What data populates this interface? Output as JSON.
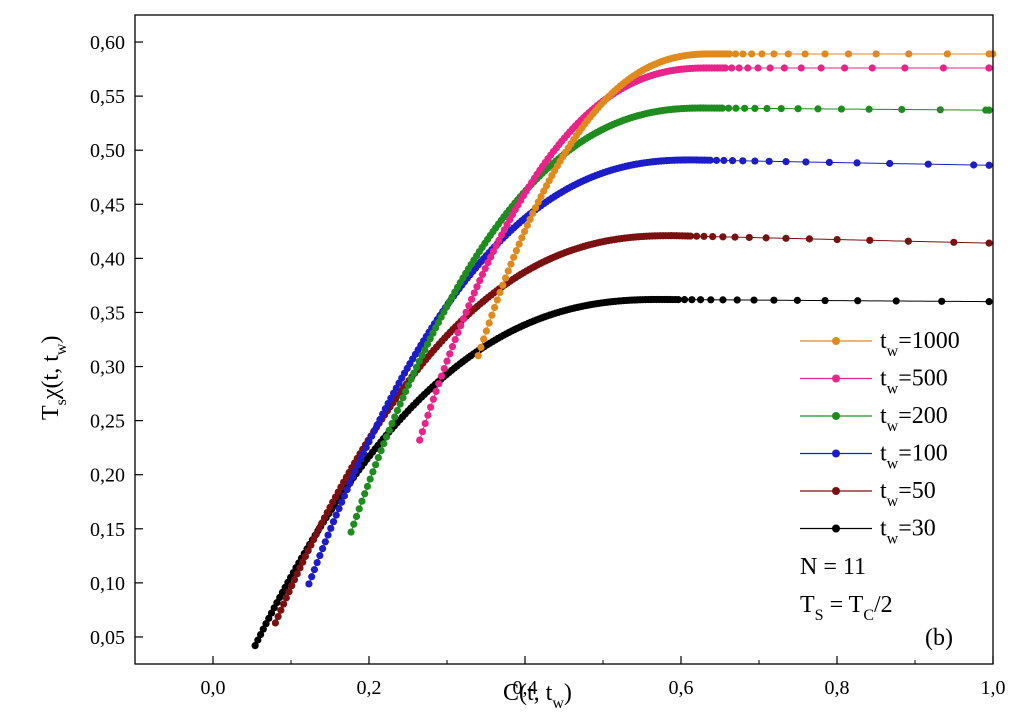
{
  "chart_data": {
    "type": "scatter",
    "title": "",
    "xlabel": "C(t, t",
    "xlabel_sub": "w",
    "xlabel_close": ")",
    "ylabel_parts": [
      "T",
      "s",
      "χ(t, t",
      "w",
      ")"
    ],
    "xlim": [
      -0.1,
      1.0
    ],
    "ylim": [
      0.025,
      0.625
    ],
    "xticks": [
      0.0,
      0.2,
      0.4,
      0.6,
      0.8,
      1.0
    ],
    "xtick_labels": [
      "0,0",
      "0,2",
      "0,4",
      "0,6",
      "0,8",
      "1,0"
    ],
    "yticks": [
      0.05,
      0.1,
      0.15,
      0.2,
      0.25,
      0.3,
      0.35,
      0.4,
      0.45,
      0.5,
      0.55,
      0.6
    ],
    "ytick_labels": [
      "0,05",
      "0,10",
      "0,15",
      "0,20",
      "0,25",
      "0,30",
      "0,35",
      "0,40",
      "0,45",
      "0,50",
      "0,55",
      "0,60"
    ],
    "grid": false,
    "legend_position": "right",
    "series": [
      {
        "name": "t_w=1000",
        "legend_prefix": "t",
        "legend_sub": "w",
        "legend_value": "=1000",
        "color": "#e08a1e",
        "start": [
          0.34,
          0.31
        ],
        "peak_x": 0.64,
        "peak_y": 0.589,
        "end_y": 0.589
      },
      {
        "name": "t_w=500",
        "legend_prefix": "t",
        "legend_sub": "w",
        "legend_value": "=500",
        "color": "#e8238a",
        "start": [
          0.265,
          0.232
        ],
        "peak_x": 0.635,
        "peak_y": 0.576,
        "end_y": 0.576
      },
      {
        "name": "t_w=200",
        "legend_prefix": "t",
        "legend_sub": "w",
        "legend_value": "=200",
        "color": "#1e8c1e",
        "start": [
          0.177,
          0.147
        ],
        "peak_x": 0.63,
        "peak_y": 0.539,
        "end_y": 0.537
      },
      {
        "name": "t_w=100",
        "legend_prefix": "t",
        "legend_sub": "w",
        "legend_value": "=100",
        "color": "#1c1cc8",
        "start": [
          0.123,
          0.099
        ],
        "peak_x": 0.615,
        "peak_y": 0.491,
        "end_y": 0.486
      },
      {
        "name": "t_w=50",
        "legend_prefix": "t",
        "legend_sub": "w",
        "legend_value": "=50",
        "color": "#7a1010",
        "start": [
          0.08,
          0.063
        ],
        "peak_x": 0.59,
        "peak_y": 0.421,
        "end_y": 0.414
      },
      {
        "name": "t_w=30",
        "legend_prefix": "t",
        "legend_sub": "w",
        "legend_value": "=30",
        "color": "#000000",
        "start": [
          0.054,
          0.042
        ],
        "peak_x": 0.575,
        "peak_y": 0.362,
        "end_y": 0.36
      }
    ],
    "annotations": {
      "n_label": "N = 11",
      "ts_main": "T",
      "ts_sub": "S",
      "ts_eq": " = T",
      "ts_sub2": "C",
      "ts_tail": "/2",
      "panel_label": "(b)"
    }
  }
}
